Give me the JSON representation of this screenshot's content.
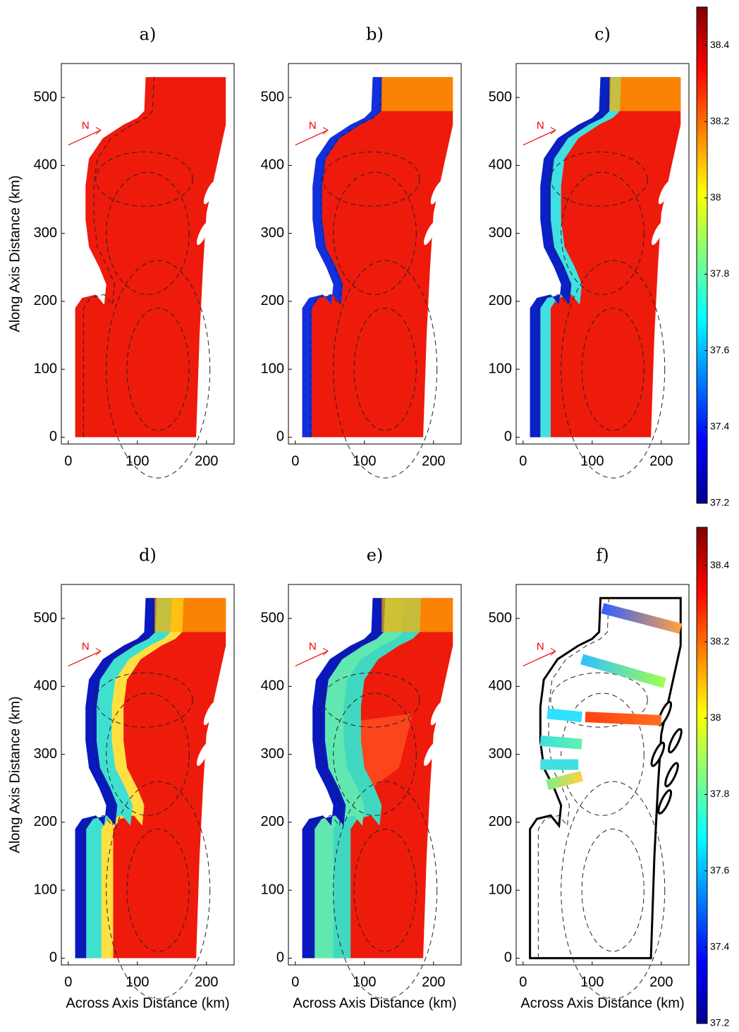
{
  "chart_data": [
    {
      "type": "map",
      "title": "a)",
      "annotation": "N",
      "ylabel": "Along Axis Distance (km)",
      "xlim": [
        -10,
        240
      ],
      "ylim": [
        -10,
        550
      ],
      "xticks": [
        0,
        100,
        200
      ],
      "yticks": [
        0,
        100,
        200,
        300,
        400,
        500
      ]
    },
    {
      "type": "map",
      "title": "b)",
      "annotation": "N",
      "xlim": [
        -10,
        240
      ],
      "ylim": [
        -10,
        550
      ],
      "xticks": [
        0,
        100,
        200
      ],
      "yticks": [
        0,
        100,
        200,
        300,
        400,
        500
      ]
    },
    {
      "type": "map",
      "title": "c)",
      "annotation": "N",
      "xlim": [
        -10,
        240
      ],
      "ylim": [
        -10,
        550
      ],
      "xticks": [
        0,
        100,
        200
      ],
      "yticks": [
        0,
        100,
        200,
        300,
        400,
        500
      ]
    },
    {
      "type": "map",
      "title": "d)",
      "annotation": "N",
      "xlabel": "Across Axis Distance (km)",
      "ylabel": "Along Axis Distance (km)",
      "xlim": [
        -10,
        240
      ],
      "ylim": [
        -10,
        550
      ],
      "xticks": [
        0,
        100,
        200
      ],
      "yticks": [
        0,
        100,
        200,
        300,
        400,
        500
      ]
    },
    {
      "type": "map",
      "title": "e)",
      "annotation": "N",
      "xlabel": "Across Axis Distance (km)",
      "xlim": [
        -10,
        240
      ],
      "ylim": [
        -10,
        550
      ],
      "xticks": [
        0,
        100,
        200
      ],
      "yticks": [
        0,
        100,
        200,
        300,
        400,
        500
      ]
    },
    {
      "type": "map",
      "title": "f)",
      "annotation": "N",
      "xlabel": "Across Axis Distance (km)",
      "xlim": [
        -10,
        240
      ],
      "ylim": [
        -10,
        550
      ],
      "xticks": [
        0,
        100,
        200
      ],
      "yticks": [
        0,
        100,
        200,
        300,
        400,
        500
      ]
    },
    {
      "type": "colorbar",
      "ylim": [
        37.2,
        38.5
      ],
      "yticks": [
        37.2,
        37.4,
        37.6,
        37.8,
        38,
        38.2,
        38.4
      ]
    },
    {
      "type": "colorbar",
      "ylim": [
        37.2,
        38.5
      ],
      "yticks": [
        37.2,
        37.4,
        37.6,
        37.8,
        38,
        38.2,
        38.4
      ]
    }
  ]
}
